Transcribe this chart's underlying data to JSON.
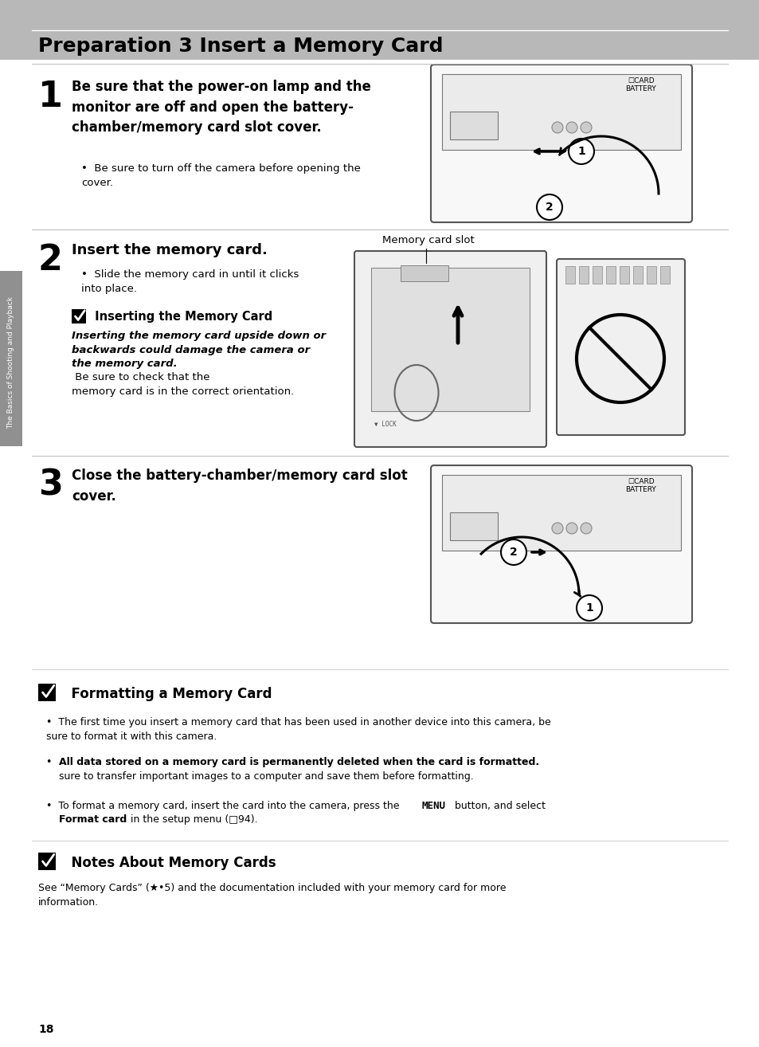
{
  "bg_color": "#ffffff",
  "header_bg": "#b0b0b0",
  "header_text": "Preparation 3 Insert a Memory Card",
  "page_number": "18",
  "sidebar_text": "The Basics of Shooting and Playback",
  "step1_title": "Be sure that the power-on lamp and the\nmonitor are off and open the battery-\nchamber/memory card slot cover.",
  "step1_bullet": "Be sure to turn off the camera before opening the\ncover.",
  "step2_title": "Insert the memory card.",
  "step2_bullet": "Slide the memory card in until it clicks\ninto place.",
  "step2_note_title": "Inserting the Memory Card",
  "step2_note_bold": "Inserting the memory card upside down or\nbackwards could damage the camera or\nthe memory card.",
  "step2_note_rest": " Be sure to check that the\nmemory card is in the correct orientation.",
  "step2_label": "Memory card slot",
  "step3_title": "Close the battery-chamber/memory card slot\ncover.",
  "fmt_title": "Formatting a Memory Card",
  "fmt_b1": "The first time you insert a memory card that has been used in another device into this camera, be\nsure to format it with this camera.",
  "fmt_b2_bold": "All data stored on a memory card is permanently deleted when the card is formatted.",
  "fmt_b2_rest": " Be\nsure to transfer important images to a computer and save them before formatting.",
  "fmt_b3_pre": "To format a memory card, insert the card into the camera, press the ",
  "fmt_b3_menu": "MENU",
  "fmt_b3_mid": " button, and select",
  "fmt_b3_bold": "Format card",
  "fmt_b3_post": " in the setup menu (□94).",
  "notes_title": "Notes About Memory Cards",
  "notes_text": "See “Memory Cards” (★•5) and the documentation included with your memory card for more\ninformation.",
  "sep_color": "#999999",
  "text_color": "#000000"
}
